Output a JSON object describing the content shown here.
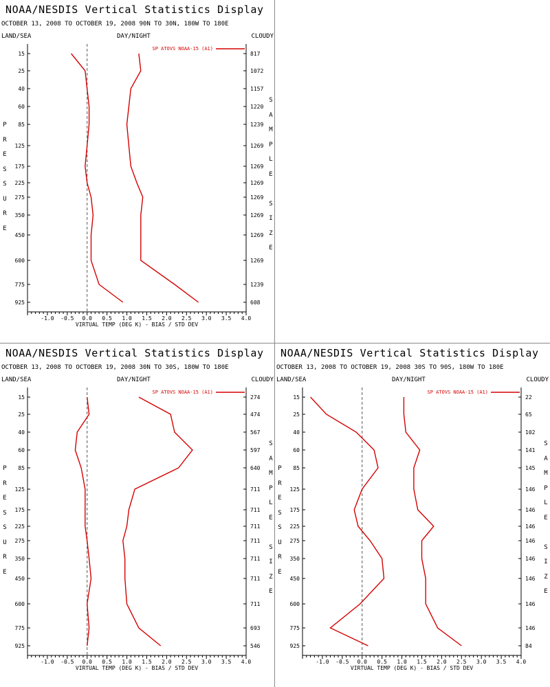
{
  "chart_data": [
    {
      "type": "line",
      "title": "NOAA/NESDIS Vertical Statistics Display",
      "subtitle": "OCTOBER 13, 2008 TO OCTOBER 19, 2008  90N TO 30N, 180W TO 180E",
      "header_left": "LAND/SEA",
      "header_center": "DAY/NIGHT",
      "header_right": "CLOUDY",
      "ylabel": "PRESSURE",
      "ylabel_right": "SAMPLE SIZE",
      "xlabel": "VIRTUAL TEMP (DEG K) - BIAS / STD DEV",
      "legend": "SP ATOVS NOAA-15 (A1)",
      "xlim": [
        -1.5,
        4.0
      ],
      "xticks": [
        "-1.0",
        "-0.5",
        "0.0",
        "0.5",
        "1.0",
        "1.5",
        "2.0",
        "2.5",
        "3.0",
        "3.5",
        "4.0"
      ],
      "levels": [
        "15",
        "25",
        "40",
        "60",
        "85",
        "125",
        "175",
        "225",
        "275",
        "350",
        "450",
        "600",
        "775",
        "925"
      ],
      "sample_size": [
        "817",
        "1072",
        "1157",
        "1220",
        "1239",
        "1269",
        "1269",
        "1269",
        "1269",
        "1269",
        "1269",
        "1269",
        "1239",
        "608"
      ],
      "bias": [
        -0.4,
        -0.05,
        0.0,
        0.05,
        0.05,
        0.0,
        -0.05,
        0.0,
        0.1,
        0.15,
        0.1,
        0.1,
        0.3,
        0.9
      ],
      "std_dev": [
        1.3,
        1.35,
        1.1,
        1.05,
        1.0,
        1.05,
        1.1,
        1.25,
        1.4,
        1.35,
        1.35,
        1.35,
        2.2,
        2.8
      ],
      "color": "#d40000"
    },
    {
      "type": "line",
      "title": "NOAA/NESDIS Vertical Statistics Display",
      "subtitle": "OCTOBER 13, 2008 TO OCTOBER 19, 2008  30N TO 30S, 180W TO 180E",
      "header_left": "LAND/SEA",
      "header_center": "DAY/NIGHT",
      "header_right": "CLOUDY",
      "ylabel": "PRESSURE",
      "ylabel_right": "SAMPLE SIZE",
      "xlabel": "VIRTUAL TEMP (DEG K) - BIAS / STD DEV",
      "legend": "SP ATOVS NOAA-15 (A1)",
      "xlim": [
        -1.5,
        4.0
      ],
      "xticks": [
        "-1.0",
        "-0.5",
        "0.0",
        "0.5",
        "1.0",
        "1.5",
        "2.0",
        "2.5",
        "3.0",
        "3.5",
        "4.0"
      ],
      "levels": [
        "15",
        "25",
        "40",
        "60",
        "85",
        "125",
        "175",
        "225",
        "275",
        "350",
        "450",
        "600",
        "775",
        "925"
      ],
      "sample_size": [
        "274",
        "474",
        "567",
        "597",
        "640",
        "711",
        "711",
        "711",
        "711",
        "711",
        "711",
        "711",
        "693",
        "546"
      ],
      "bias": [
        0.0,
        0.05,
        -0.25,
        -0.3,
        -0.15,
        -0.05,
        -0.05,
        -0.05,
        0.0,
        0.05,
        0.1,
        0.0,
        0.05,
        0.0
      ],
      "std_dev": [
        1.3,
        2.1,
        2.2,
        2.65,
        2.3,
        1.2,
        1.05,
        1.0,
        0.9,
        0.95,
        0.95,
        1.0,
        1.3,
        1.85
      ],
      "color": "#d40000"
    },
    {
      "type": "line",
      "title": "NOAA/NESDIS Vertical Statistics Display",
      "subtitle": "OCTOBER 13, 2008 TO OCTOBER 19, 2008  30S TO 90S, 180W TO 180E",
      "header_left": "LAND/SEA",
      "header_center": "DAY/NIGHT",
      "header_right": "CLOUDY",
      "ylabel": "PRESSURE",
      "ylabel_right": "SAMPLE SIZE",
      "xlabel": "VIRTUAL TEMP (DEG K) - BIAS / STD DEV",
      "legend": "SP ATOVS NOAA-15 (A1)",
      "xlim": [
        -1.5,
        4.0
      ],
      "xticks": [
        "-1.0",
        "-0.5",
        "0.0",
        "0.5",
        "1.0",
        "1.5",
        "2.0",
        "2.5",
        "3.0",
        "3.5",
        "4.0"
      ],
      "levels": [
        "15",
        "25",
        "40",
        "60",
        "85",
        "125",
        "175",
        "225",
        "275",
        "350",
        "450",
        "600",
        "775",
        "925"
      ],
      "sample_size": [
        "22",
        "65",
        "102",
        "141",
        "145",
        "146",
        "146",
        "146",
        "146",
        "146",
        "146",
        "146",
        "146",
        "84"
      ],
      "bias": [
        -1.3,
        -0.9,
        -0.15,
        0.3,
        0.4,
        0.0,
        -0.2,
        -0.1,
        0.2,
        0.5,
        0.55,
        -0.05,
        -0.8,
        0.15
      ],
      "std_dev": [
        1.05,
        1.05,
        1.1,
        1.45,
        1.3,
        1.3,
        1.4,
        1.8,
        1.5,
        1.5,
        1.6,
        1.6,
        1.9,
        2.5
      ],
      "color": "#d40000"
    }
  ]
}
